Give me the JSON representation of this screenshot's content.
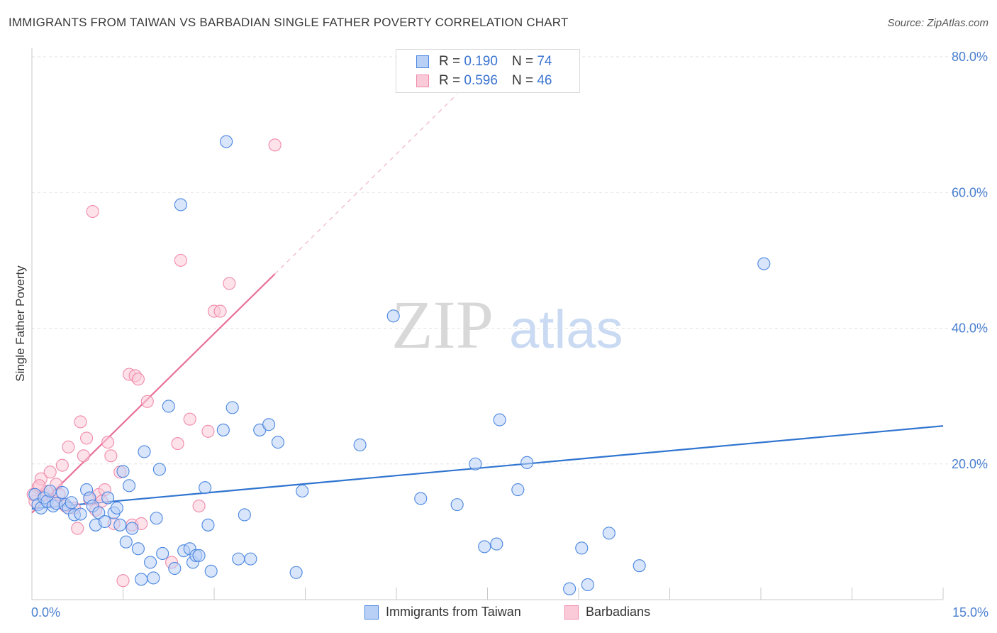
{
  "title": "IMMIGRANTS FROM TAIWAN VS BARBADIAN SINGLE FATHER POVERTY CORRELATION CHART",
  "source": "Source: ZipAtlas.com",
  "watermark": {
    "zip": "ZIP",
    "atlas": "atlas"
  },
  "legend": {
    "r_label": "R =",
    "n_label": "N =",
    "rows": [
      {
        "r": "0.190",
        "n": "74",
        "color": "#4a86e0",
        "fill": "#b8d0f5"
      },
      {
        "r": "0.596",
        "n": "46",
        "color": "#f08aaa",
        "fill": "#fbcad9"
      }
    ]
  },
  "bottom_legend": [
    "Immigrants from Taiwan",
    "Barbadians"
  ],
  "chart_data": {
    "type": "scatter",
    "title": "IMMIGRANTS FROM TAIWAN VS BARBADIAN SINGLE FATHER POVERTY CORRELATION CHART",
    "xlabel": "",
    "ylabel": "Single Father Poverty",
    "xlim": [
      0,
      15
    ],
    "ylim": [
      0,
      80
    ],
    "x_tick_labels": [
      "0.0%",
      "15.0%"
    ],
    "y_ticks": [
      20,
      40,
      60,
      80
    ],
    "y_tick_labels": [
      "20.0%",
      "40.0%",
      "60.0%",
      "80.0%"
    ],
    "grid": "horizontal dashed",
    "legend_position": "top-center",
    "series": [
      {
        "name": "Immigrants from Taiwan",
        "color": "#4a86e0",
        "fill": "#b8d0f5",
        "trend": {
          "x": [
            0,
            15
          ],
          "y": [
            13.4,
            25.6
          ],
          "style": "solid"
        },
        "points": [
          [
            0.05,
            15.5
          ],
          [
            0.1,
            14.0
          ],
          [
            0.15,
            13.5
          ],
          [
            0.2,
            15.0
          ],
          [
            0.25,
            14.5
          ],
          [
            0.3,
            16.0
          ],
          [
            0.35,
            13.8
          ],
          [
            0.4,
            14.2
          ],
          [
            0.5,
            15.8
          ],
          [
            0.55,
            14.0
          ],
          [
            0.6,
            13.5
          ],
          [
            0.65,
            14.3
          ],
          [
            0.7,
            12.5
          ],
          [
            0.8,
            12.6
          ],
          [
            0.9,
            16.2
          ],
          [
            0.95,
            15.0
          ],
          [
            1.0,
            13.8
          ],
          [
            1.05,
            11.0
          ],
          [
            1.1,
            12.8
          ],
          [
            1.2,
            11.5
          ],
          [
            1.25,
            15.0
          ],
          [
            1.35,
            12.8
          ],
          [
            1.4,
            13.5
          ],
          [
            1.45,
            11.0
          ],
          [
            1.5,
            18.9
          ],
          [
            1.55,
            8.5
          ],
          [
            1.6,
            16.8
          ],
          [
            1.65,
            10.5
          ],
          [
            1.75,
            7.5
          ],
          [
            1.8,
            3.0
          ],
          [
            1.85,
            21.8
          ],
          [
            1.95,
            5.5
          ],
          [
            2.0,
            3.2
          ],
          [
            2.05,
            12.0
          ],
          [
            2.1,
            19.2
          ],
          [
            2.15,
            6.8
          ],
          [
            2.25,
            28.5
          ],
          [
            2.35,
            4.6
          ],
          [
            2.45,
            58.2
          ],
          [
            2.5,
            7.2
          ],
          [
            2.6,
            7.5
          ],
          [
            2.65,
            5.5
          ],
          [
            2.7,
            6.5
          ],
          [
            2.75,
            6.5
          ],
          [
            2.85,
            16.5
          ],
          [
            2.9,
            11.0
          ],
          [
            2.95,
            4.2
          ],
          [
            3.15,
            25.0
          ],
          [
            3.2,
            67.5
          ],
          [
            3.3,
            28.3
          ],
          [
            3.4,
            6.0
          ],
          [
            3.5,
            12.5
          ],
          [
            3.6,
            6.0
          ],
          [
            3.75,
            25.0
          ],
          [
            3.9,
            25.8
          ],
          [
            4.05,
            23.2
          ],
          [
            4.35,
            4.0
          ],
          [
            4.45,
            16.0
          ],
          [
            5.4,
            22.8
          ],
          [
            5.95,
            41.8
          ],
          [
            6.4,
            14.9
          ],
          [
            7.0,
            14.0
          ],
          [
            7.3,
            20.0
          ],
          [
            7.45,
            7.8
          ],
          [
            7.65,
            8.2
          ],
          [
            7.7,
            26.5
          ],
          [
            8.0,
            16.2
          ],
          [
            8.15,
            20.2
          ],
          [
            8.85,
            1.6
          ],
          [
            9.05,
            7.6
          ],
          [
            9.15,
            2.2
          ],
          [
            9.5,
            9.8
          ],
          [
            10.0,
            5.0
          ],
          [
            12.05,
            49.5
          ]
        ]
      },
      {
        "name": "Barbadians",
        "color": "#f08aaa",
        "fill": "#fbcad9",
        "trend": {
          "x": [
            0,
            4.0
          ],
          "y": [
            12.8,
            48.0
          ],
          "style": "solid",
          "extended": {
            "x": [
              4.0,
              7.0
            ],
            "y": [
              48.0,
              74.5
            ],
            "style": "dashed"
          }
        },
        "points": [
          [
            0.05,
            14.5
          ],
          [
            0.1,
            16.5
          ],
          [
            0.15,
            17.8
          ],
          [
            0.2,
            15.5
          ],
          [
            0.25,
            16.0
          ],
          [
            0.3,
            18.8
          ],
          [
            0.35,
            14.5
          ],
          [
            0.4,
            17.0
          ],
          [
            0.45,
            15.5
          ],
          [
            0.5,
            19.8
          ],
          [
            0.55,
            13.8
          ],
          [
            0.6,
            22.5
          ],
          [
            0.7,
            13.5
          ],
          [
            0.75,
            10.5
          ],
          [
            0.8,
            26.2
          ],
          [
            0.85,
            21.2
          ],
          [
            0.9,
            23.8
          ],
          [
            0.95,
            14.8
          ],
          [
            1.0,
            57.2
          ],
          [
            1.05,
            13.2
          ],
          [
            1.1,
            15.5
          ],
          [
            1.15,
            14.5
          ],
          [
            1.2,
            16.2
          ],
          [
            1.25,
            23.2
          ],
          [
            1.3,
            21.2
          ],
          [
            1.35,
            11.2
          ],
          [
            1.45,
            18.8
          ],
          [
            1.5,
            2.8
          ],
          [
            1.6,
            33.2
          ],
          [
            1.65,
            11.0
          ],
          [
            1.7,
            33.0
          ],
          [
            1.75,
            32.5
          ],
          [
            1.8,
            11.2
          ],
          [
            1.9,
            29.2
          ],
          [
            2.3,
            5.5
          ],
          [
            2.4,
            23.0
          ],
          [
            2.45,
            50.0
          ],
          [
            2.6,
            26.6
          ],
          [
            2.75,
            13.8
          ],
          [
            2.9,
            24.8
          ],
          [
            3.0,
            42.5
          ],
          [
            3.1,
            42.5
          ],
          [
            3.25,
            46.6
          ],
          [
            4.0,
            67.0
          ],
          [
            0.02,
            15.5
          ],
          [
            0.12,
            16.8
          ]
        ]
      }
    ]
  }
}
